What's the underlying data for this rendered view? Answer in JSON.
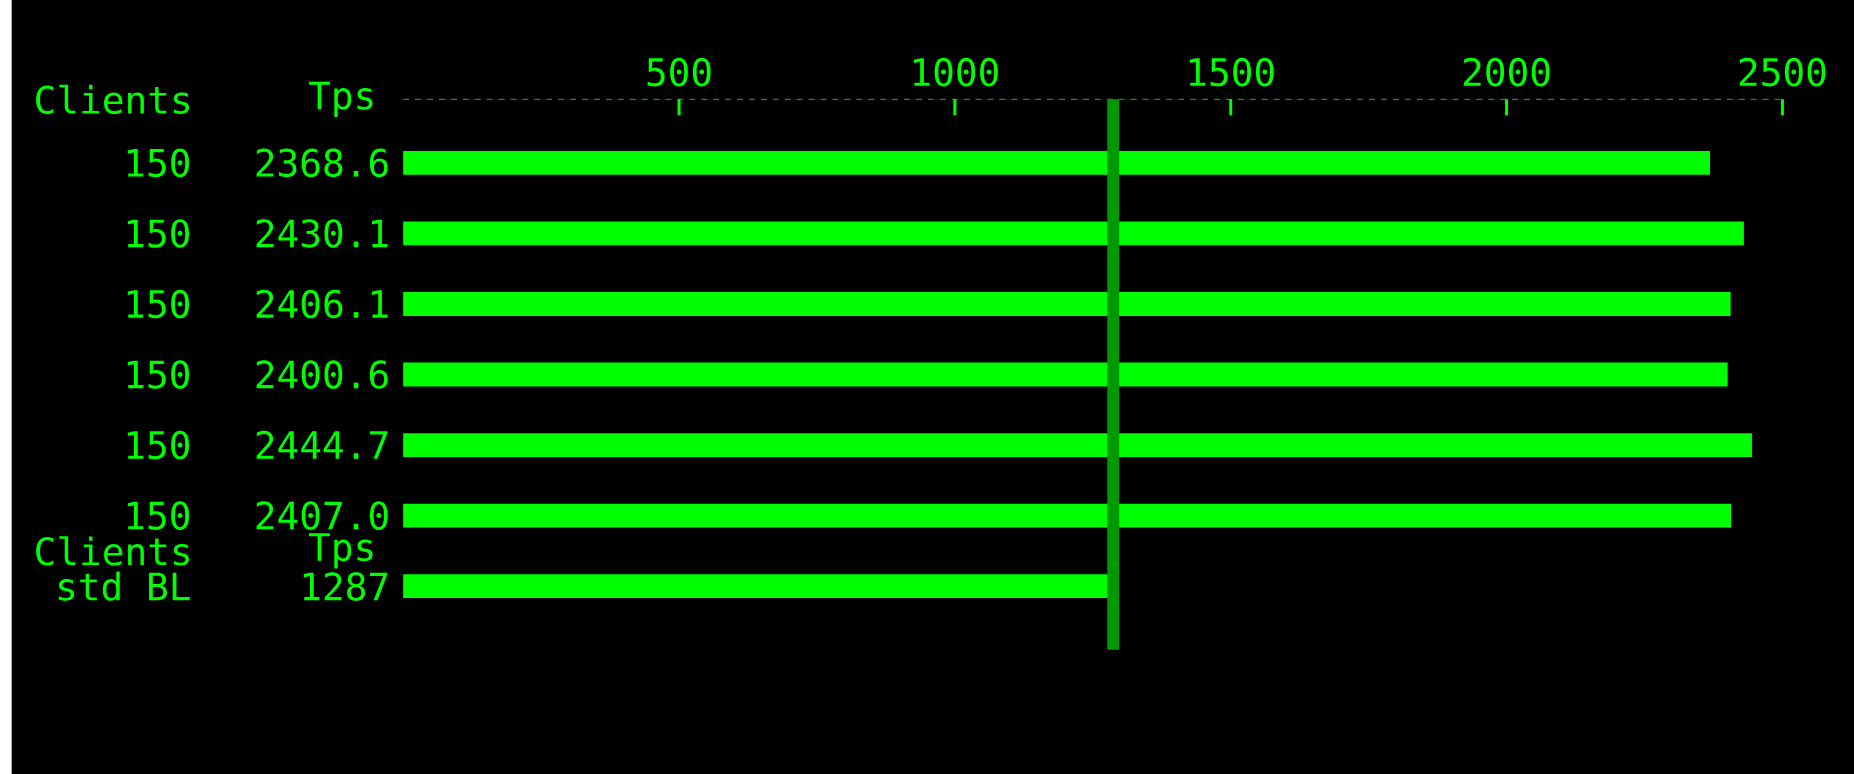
{
  "chart_data": {
    "type": "bar",
    "orientation": "horizontal",
    "annotations": [
      "Clients",
      "Tps",
      "Clients",
      "Tps"
    ],
    "categories": [
      "150",
      "150",
      "150",
      "150",
      "150",
      "150",
      "std BL"
    ],
    "values": [
      2368.6,
      2430.1,
      2406.1,
      2400.6,
      2444.7,
      2407.0,
      1287
    ],
    "value_labels": [
      "2368.6",
      "2430.1",
      "2406.1",
      "2400.6",
      "2444.7",
      "2407.0",
      "1287"
    ],
    "color": "#00ff00",
    "xlim": [
      0,
      2500
    ],
    "xticks": [
      500,
      1000,
      1500,
      2000,
      2500
    ],
    "ref_lines": [
      {
        "axis": "x",
        "value": 1287,
        "color": "#009900"
      }
    ]
  }
}
